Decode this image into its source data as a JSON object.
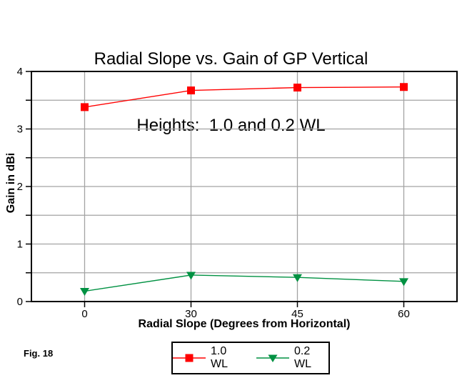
{
  "caption": "Fig. 18",
  "chart_data": {
    "type": "line",
    "title_line1": "Radial Slope vs. Gain of GP Vertical",
    "title_line2": "Heights:  1.0 and 0.2 WL",
    "xlabel": "Radial Slope (Degrees from Horizontal)",
    "ylabel": "Gain in dBi",
    "categories": [
      "0",
      "30",
      "45",
      "60"
    ],
    "ylim": [
      0,
      4
    ],
    "ytick_step": 1,
    "minor_grid_step": 0.5,
    "grid": true,
    "legend_position": "bottom-center",
    "axis_color": "#000000",
    "grid_color": "#a3a3a3",
    "text_color": "#000000",
    "series": [
      {
        "name": "1.0 WL",
        "marker": "square",
        "color": "#ff0000",
        "values": [
          3.38,
          3.67,
          3.72,
          3.73
        ]
      },
      {
        "name": "0.2 WL",
        "marker": "triangle-down",
        "color": "#009142",
        "values": [
          0.18,
          0.46,
          0.42,
          0.35
        ]
      }
    ]
  }
}
